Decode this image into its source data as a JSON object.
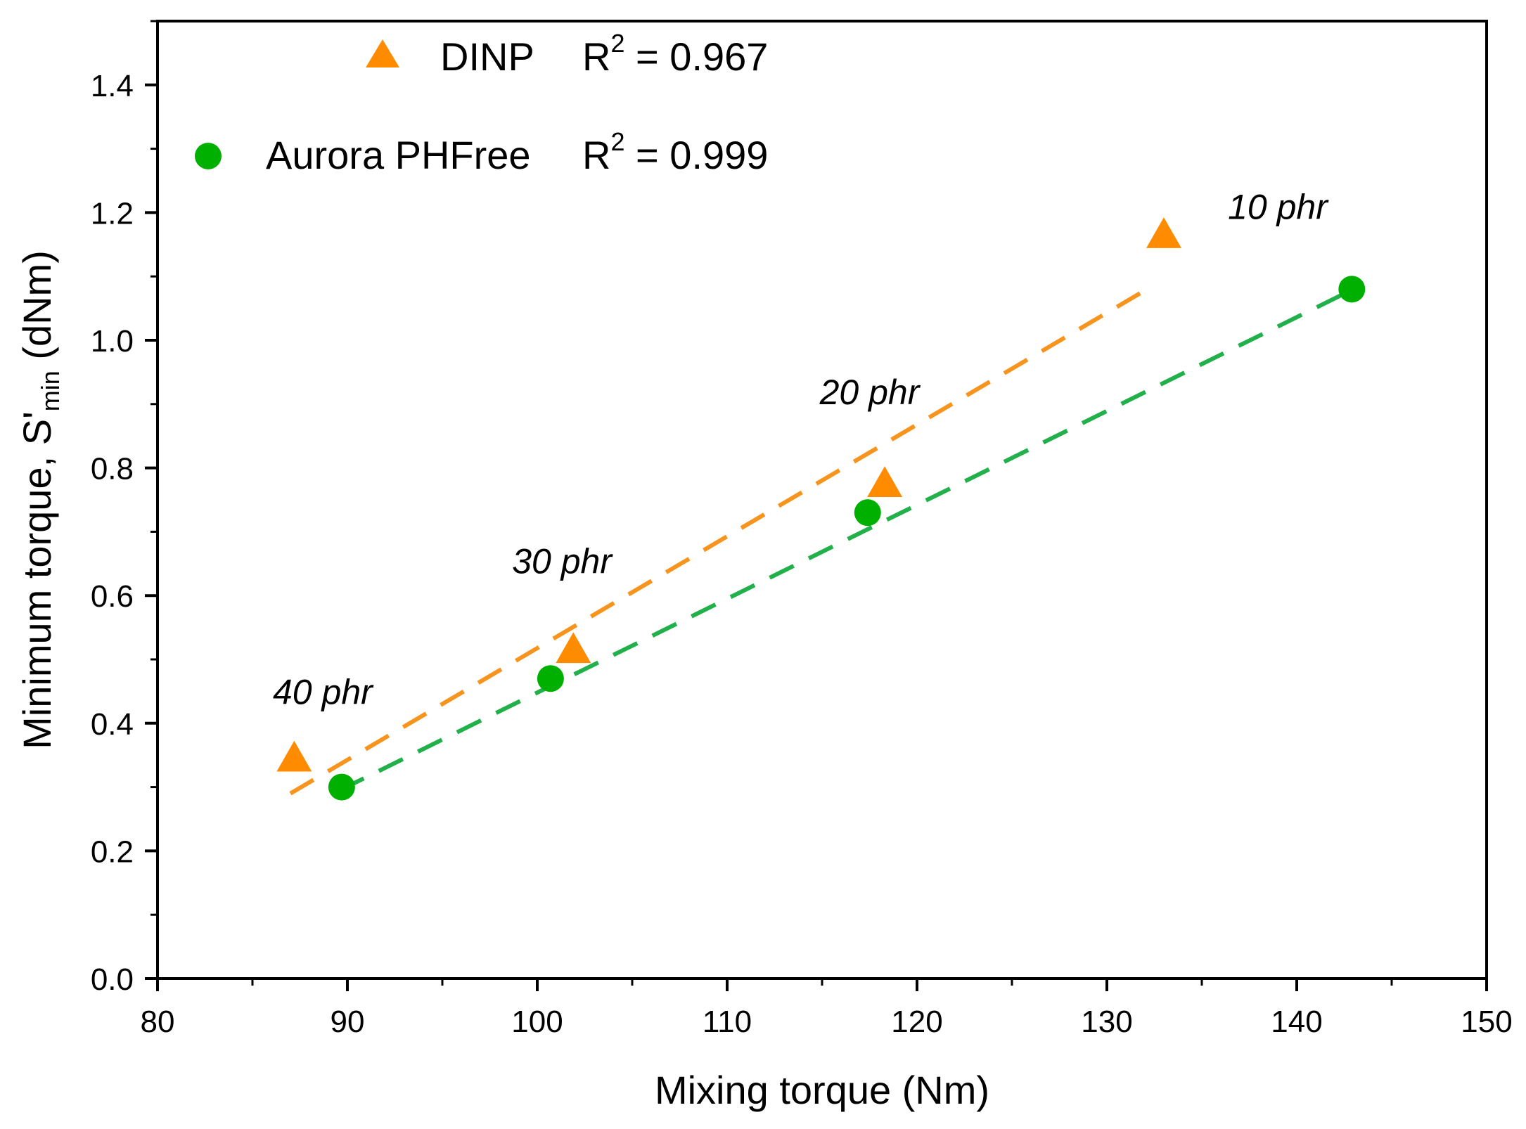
{
  "chart_data": {
    "type": "scatter",
    "title": "",
    "xlabel": "Mixing torque (Nm)",
    "ylabel": {
      "prefix": "Minimum torque, S'",
      "subscript": "min",
      "suffix": " (dNm)"
    },
    "xlim": [
      80,
      150
    ],
    "ylim": [
      0,
      1.5
    ],
    "xticks": [
      80,
      90,
      100,
      110,
      120,
      130,
      140,
      150
    ],
    "yticks": [
      0.0,
      0.2,
      0.4,
      0.6,
      0.8,
      1.0,
      1.2,
      1.4
    ],
    "xtick_labels": [
      "80",
      "90",
      "100",
      "110",
      "120",
      "130",
      "140",
      "150"
    ],
    "ytick_labels": [
      "0.0",
      "0.2",
      "0.4",
      "0.6",
      "0.8",
      "1.0",
      "1.2",
      "1.4"
    ],
    "grid": false,
    "legend_position": "top-left",
    "series": [
      {
        "name": "DINP",
        "marker": "triangle",
        "color": "#FF8C00",
        "line_color": "#F7941D",
        "r2_label": "R",
        "r2_sup": "2",
        "r2_value": " = 0.967",
        "x": [
          87.2,
          101.9,
          118.3,
          133.0
        ],
        "y": [
          0.345,
          0.515,
          0.775,
          1.165
        ],
        "fit": {
          "x": [
            87.0,
            132.4
          ],
          "y": [
            0.29,
            1.085
          ]
        }
      },
      {
        "name": "Aurora PHFree",
        "marker": "circle",
        "color": "#00B000",
        "line_color": "#22B04B",
        "r2_label": "R",
        "r2_sup": "2",
        "r2_value": " = 0.999",
        "x": [
          89.7,
          100.7,
          117.4,
          142.9
        ],
        "y": [
          0.3,
          0.47,
          0.73,
          1.08
        ],
        "fit": {
          "x": [
            89.6,
            142.3
          ],
          "y": [
            0.295,
            1.07
          ]
        }
      }
    ],
    "annotations": [
      {
        "text": "10 phr",
        "x": 139.0,
        "y": 1.19
      },
      {
        "text": "20 phr",
        "x": 117.5,
        "y": 0.9
      },
      {
        "text": "30 phr",
        "x": 101.3,
        "y": 0.635
      },
      {
        "text": "40 phr",
        "x": 88.7,
        "y": 0.43
      }
    ]
  }
}
